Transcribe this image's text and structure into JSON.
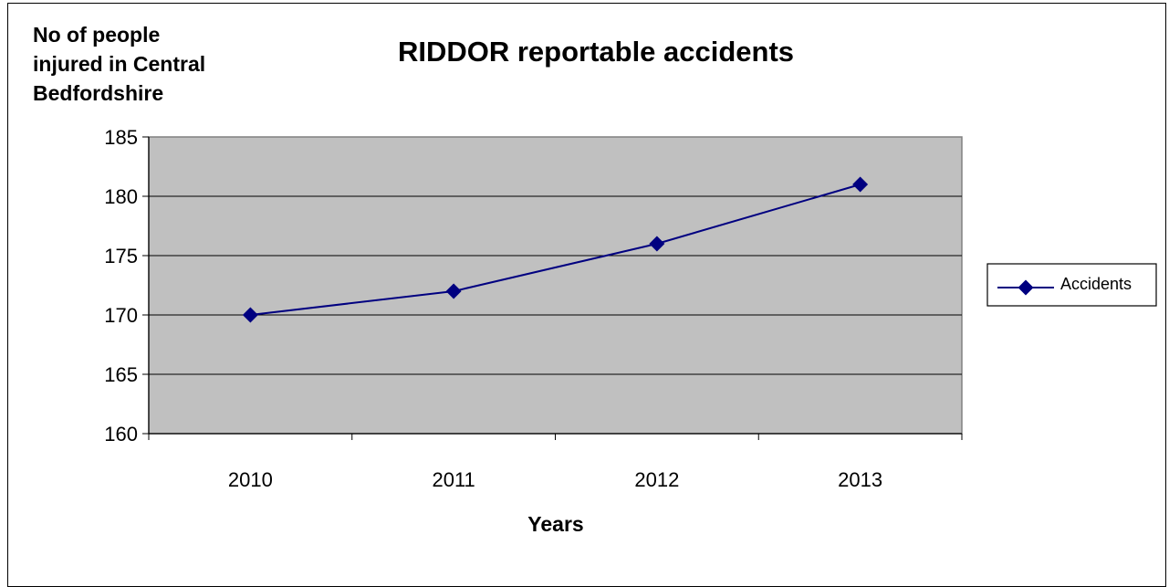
{
  "chart_data": {
    "type": "line",
    "title": "RIDDOR reportable accidents",
    "ylabel_lines": [
      "No of people",
      "injured in Central",
      "Bedfordshire"
    ],
    "xlabel": "Years",
    "categories": [
      "2010",
      "2011",
      "2012",
      "2013"
    ],
    "series": [
      {
        "name": "Accidents",
        "values": [
          170,
          172,
          176,
          181
        ],
        "color": "#000080"
      }
    ],
    "ylim": [
      160,
      185
    ],
    "yticks": [
      160,
      165,
      170,
      175,
      180,
      185
    ],
    "grid": true,
    "legend": "right",
    "plot_background": "#c0c0c0"
  }
}
